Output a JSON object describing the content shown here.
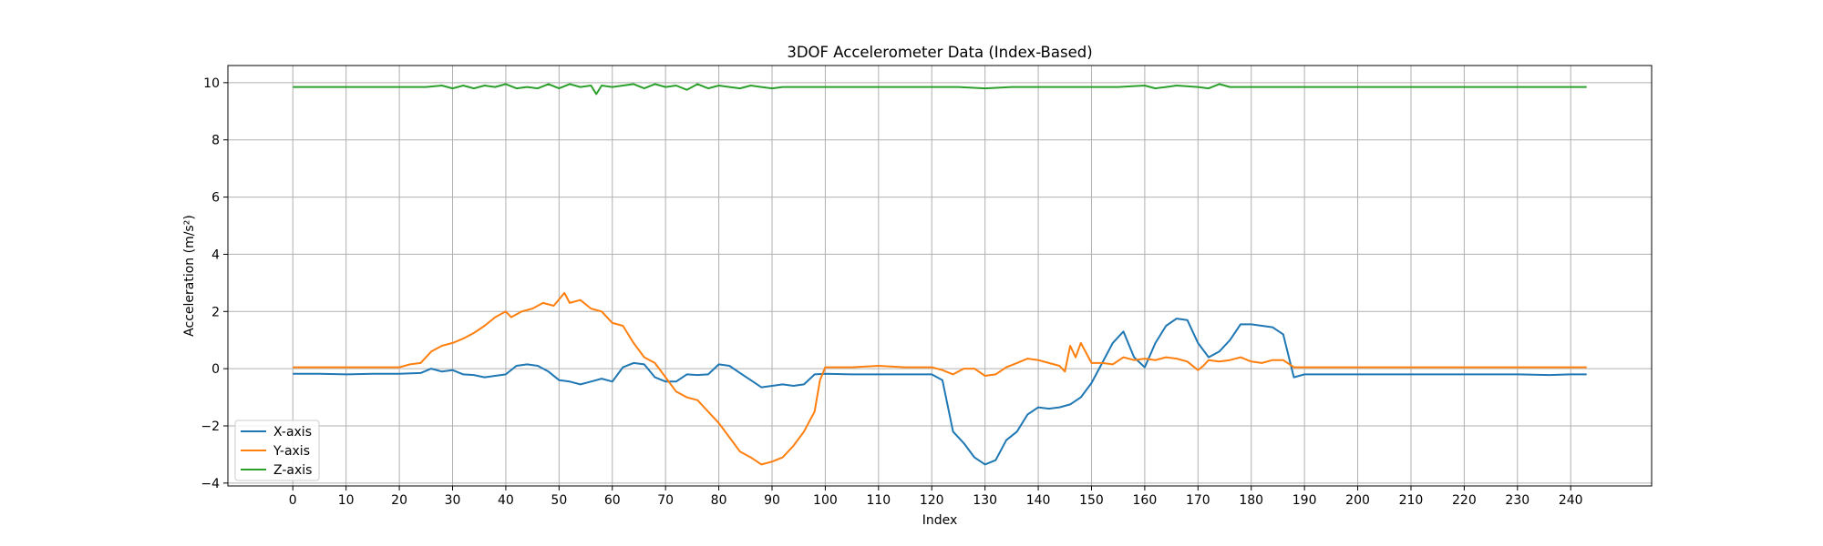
{
  "chart_data": {
    "type": "line",
    "title": "3DOF Accelerometer Data (Index-Based)",
    "xlabel": "Index",
    "ylabel": "Acceleration (m/s²)",
    "xlim": [
      -12.2,
      255.2
    ],
    "ylim": [
      -4.1,
      10.6
    ],
    "xticks": [
      0,
      10,
      20,
      30,
      40,
      50,
      60,
      70,
      80,
      90,
      100,
      110,
      120,
      130,
      140,
      150,
      160,
      170,
      180,
      190,
      200,
      210,
      220,
      230,
      240
    ],
    "yticks": [
      -4,
      -2,
      0,
      2,
      4,
      6,
      8,
      10
    ],
    "grid": true,
    "legend_position": "lower-left",
    "series": [
      {
        "name": "X-axis",
        "color": "#1f77b4",
        "points": [
          [
            0,
            -0.18
          ],
          [
            5,
            -0.18
          ],
          [
            10,
            -0.2
          ],
          [
            15,
            -0.18
          ],
          [
            20,
            -0.18
          ],
          [
            24,
            -0.15
          ],
          [
            26,
            0.0
          ],
          [
            28,
            -0.1
          ],
          [
            30,
            -0.05
          ],
          [
            32,
            -0.2
          ],
          [
            34,
            -0.22
          ],
          [
            36,
            -0.3
          ],
          [
            38,
            -0.25
          ],
          [
            40,
            -0.2
          ],
          [
            42,
            0.1
          ],
          [
            44,
            0.15
          ],
          [
            46,
            0.1
          ],
          [
            48,
            -0.1
          ],
          [
            50,
            -0.4
          ],
          [
            52,
            -0.45
          ],
          [
            54,
            -0.55
          ],
          [
            56,
            -0.45
          ],
          [
            58,
            -0.35
          ],
          [
            60,
            -0.45
          ],
          [
            62,
            0.05
          ],
          [
            64,
            0.2
          ],
          [
            66,
            0.15
          ],
          [
            68,
            -0.3
          ],
          [
            70,
            -0.45
          ],
          [
            72,
            -0.45
          ],
          [
            74,
            -0.2
          ],
          [
            76,
            -0.22
          ],
          [
            78,
            -0.2
          ],
          [
            80,
            0.15
          ],
          [
            82,
            0.1
          ],
          [
            84,
            -0.15
          ],
          [
            86,
            -0.4
          ],
          [
            88,
            -0.65
          ],
          [
            90,
            -0.6
          ],
          [
            92,
            -0.55
          ],
          [
            94,
            -0.6
          ],
          [
            96,
            -0.55
          ],
          [
            98,
            -0.2
          ],
          [
            100,
            -0.18
          ],
          [
            105,
            -0.2
          ],
          [
            110,
            -0.2
          ],
          [
            115,
            -0.2
          ],
          [
            120,
            -0.2
          ],
          [
            122,
            -0.4
          ],
          [
            124,
            -2.2
          ],
          [
            126,
            -2.6
          ],
          [
            128,
            -3.1
          ],
          [
            130,
            -3.35
          ],
          [
            132,
            -3.2
          ],
          [
            134,
            -2.5
          ],
          [
            136,
            -2.2
          ],
          [
            138,
            -1.6
          ],
          [
            140,
            -1.35
          ],
          [
            142,
            -1.4
          ],
          [
            144,
            -1.35
          ],
          [
            146,
            -1.25
          ],
          [
            148,
            -1.0
          ],
          [
            150,
            -0.5
          ],
          [
            152,
            0.2
          ],
          [
            154,
            0.9
          ],
          [
            156,
            1.3
          ],
          [
            158,
            0.4
          ],
          [
            160,
            0.05
          ],
          [
            162,
            0.9
          ],
          [
            164,
            1.5
          ],
          [
            166,
            1.75
          ],
          [
            168,
            1.7
          ],
          [
            170,
            0.9
          ],
          [
            172,
            0.4
          ],
          [
            174,
            0.6
          ],
          [
            176,
            1.0
          ],
          [
            178,
            1.55
          ],
          [
            180,
            1.55
          ],
          [
            182,
            1.5
          ],
          [
            184,
            1.45
          ],
          [
            186,
            1.2
          ],
          [
            188,
            -0.3
          ],
          [
            190,
            -0.2
          ],
          [
            195,
            -0.2
          ],
          [
            200,
            -0.2
          ],
          [
            210,
            -0.2
          ],
          [
            220,
            -0.2
          ],
          [
            230,
            -0.2
          ],
          [
            236,
            -0.22
          ],
          [
            240,
            -0.2
          ],
          [
            243,
            -0.2
          ]
        ]
      },
      {
        "name": "Y-axis",
        "color": "#ff7f0e",
        "points": [
          [
            0,
            0.05
          ],
          [
            5,
            0.05
          ],
          [
            10,
            0.05
          ],
          [
            15,
            0.05
          ],
          [
            20,
            0.05
          ],
          [
            22,
            0.15
          ],
          [
            24,
            0.2
          ],
          [
            26,
            0.6
          ],
          [
            28,
            0.8
          ],
          [
            30,
            0.9
          ],
          [
            32,
            1.05
          ],
          [
            34,
            1.25
          ],
          [
            36,
            1.5
          ],
          [
            38,
            1.8
          ],
          [
            40,
            2.0
          ],
          [
            41,
            1.8
          ],
          [
            43,
            2.0
          ],
          [
            45,
            2.1
          ],
          [
            47,
            2.3
          ],
          [
            49,
            2.2
          ],
          [
            51,
            2.65
          ],
          [
            52,
            2.3
          ],
          [
            54,
            2.4
          ],
          [
            56,
            2.1
          ],
          [
            58,
            2.0
          ],
          [
            60,
            1.6
          ],
          [
            62,
            1.5
          ],
          [
            64,
            0.9
          ],
          [
            66,
            0.4
          ],
          [
            68,
            0.2
          ],
          [
            70,
            -0.3
          ],
          [
            72,
            -0.8
          ],
          [
            74,
            -1.0
          ],
          [
            76,
            -1.1
          ],
          [
            78,
            -1.5
          ],
          [
            80,
            -1.9
          ],
          [
            82,
            -2.4
          ],
          [
            84,
            -2.9
          ],
          [
            86,
            -3.1
          ],
          [
            88,
            -3.35
          ],
          [
            90,
            -3.25
          ],
          [
            92,
            -3.1
          ],
          [
            94,
            -2.7
          ],
          [
            96,
            -2.2
          ],
          [
            98,
            -1.5
          ],
          [
            99,
            -0.4
          ],
          [
            100,
            0.05
          ],
          [
            102,
            0.05
          ],
          [
            105,
            0.05
          ],
          [
            110,
            0.1
          ],
          [
            115,
            0.05
          ],
          [
            120,
            0.05
          ],
          [
            122,
            -0.05
          ],
          [
            124,
            -0.2
          ],
          [
            126,
            0.0
          ],
          [
            128,
            0.0
          ],
          [
            130,
            -0.25
          ],
          [
            132,
            -0.2
          ],
          [
            134,
            0.05
          ],
          [
            136,
            0.2
          ],
          [
            138,
            0.35
          ],
          [
            140,
            0.3
          ],
          [
            142,
            0.2
          ],
          [
            144,
            0.1
          ],
          [
            145,
            -0.1
          ],
          [
            146,
            0.8
          ],
          [
            147,
            0.4
          ],
          [
            148,
            0.9
          ],
          [
            150,
            0.2
          ],
          [
            152,
            0.2
          ],
          [
            154,
            0.15
          ],
          [
            156,
            0.4
          ],
          [
            158,
            0.3
          ],
          [
            160,
            0.35
          ],
          [
            162,
            0.3
          ],
          [
            164,
            0.4
          ],
          [
            166,
            0.35
          ],
          [
            168,
            0.25
          ],
          [
            170,
            -0.05
          ],
          [
            171,
            0.1
          ],
          [
            172,
            0.3
          ],
          [
            174,
            0.25
          ],
          [
            176,
            0.3
          ],
          [
            178,
            0.4
          ],
          [
            180,
            0.25
          ],
          [
            182,
            0.2
          ],
          [
            184,
            0.3
          ],
          [
            186,
            0.3
          ],
          [
            188,
            0.05
          ],
          [
            190,
            0.05
          ],
          [
            200,
            0.05
          ],
          [
            210,
            0.05
          ],
          [
            220,
            0.05
          ],
          [
            230,
            0.05
          ],
          [
            240,
            0.05
          ],
          [
            243,
            0.05
          ]
        ]
      },
      {
        "name": "Z-axis",
        "color": "#2ca02c",
        "points": [
          [
            0,
            9.85
          ],
          [
            5,
            9.85
          ],
          [
            10,
            9.85
          ],
          [
            15,
            9.85
          ],
          [
            20,
            9.85
          ],
          [
            25,
            9.85
          ],
          [
            28,
            9.9
          ],
          [
            30,
            9.8
          ],
          [
            32,
            9.9
          ],
          [
            34,
            9.8
          ],
          [
            36,
            9.9
          ],
          [
            38,
            9.85
          ],
          [
            40,
            9.95
          ],
          [
            42,
            9.8
          ],
          [
            44,
            9.85
          ],
          [
            46,
            9.8
          ],
          [
            48,
            9.95
          ],
          [
            50,
            9.8
          ],
          [
            52,
            9.95
          ],
          [
            54,
            9.85
          ],
          [
            56,
            9.9
          ],
          [
            57,
            9.6
          ],
          [
            58,
            9.9
          ],
          [
            60,
            9.85
          ],
          [
            62,
            9.9
          ],
          [
            64,
            9.95
          ],
          [
            66,
            9.8
          ],
          [
            68,
            9.95
          ],
          [
            70,
            9.85
          ],
          [
            72,
            9.9
          ],
          [
            74,
            9.75
          ],
          [
            76,
            9.95
          ],
          [
            78,
            9.8
          ],
          [
            80,
            9.9
          ],
          [
            82,
            9.85
          ],
          [
            84,
            9.8
          ],
          [
            86,
            9.9
          ],
          [
            88,
            9.85
          ],
          [
            90,
            9.8
          ],
          [
            92,
            9.85
          ],
          [
            95,
            9.85
          ],
          [
            100,
            9.85
          ],
          [
            110,
            9.85
          ],
          [
            120,
            9.85
          ],
          [
            125,
            9.85
          ],
          [
            130,
            9.8
          ],
          [
            135,
            9.85
          ],
          [
            140,
            9.85
          ],
          [
            145,
            9.85
          ],
          [
            150,
            9.85
          ],
          [
            155,
            9.85
          ],
          [
            160,
            9.9
          ],
          [
            162,
            9.8
          ],
          [
            164,
            9.85
          ],
          [
            166,
            9.9
          ],
          [
            170,
            9.85
          ],
          [
            172,
            9.8
          ],
          [
            174,
            9.95
          ],
          [
            176,
            9.85
          ],
          [
            180,
            9.85
          ],
          [
            190,
            9.85
          ],
          [
            200,
            9.85
          ],
          [
            210,
            9.85
          ],
          [
            220,
            9.85
          ],
          [
            230,
            9.85
          ],
          [
            240,
            9.85
          ],
          [
            243,
            9.85
          ]
        ]
      }
    ]
  }
}
